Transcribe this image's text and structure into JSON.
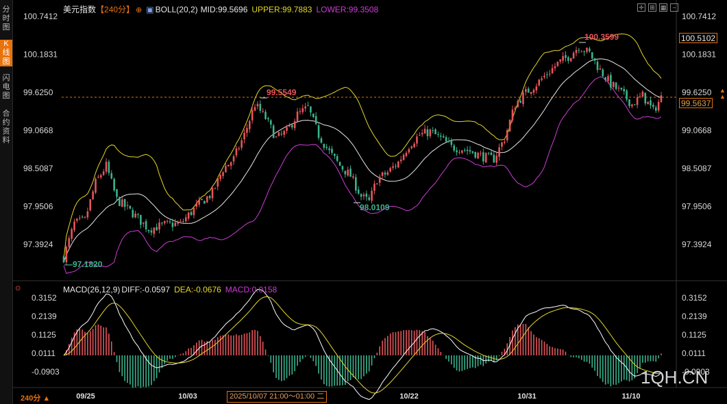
{
  "sidebar": {
    "items": [
      {
        "chars": [
          "分",
          "时",
          "图"
        ],
        "active": false
      },
      {
        "chars": [
          "K",
          "线",
          "图"
        ],
        "active": true
      },
      {
        "chars": [
          "闪",
          "电",
          "图"
        ],
        "active": false
      },
      {
        "chars": [
          "合",
          "约",
          "资",
          "料"
        ],
        "active": false
      }
    ]
  },
  "header": {
    "symbol": "美元指数",
    "period": "【240分】",
    "settings_icon": "gear-icon",
    "indicator_icon": "chart-icon",
    "boll_name": "BOLL(20,2)",
    "mid": "MID:99.5696",
    "upper": "UPPER:99.7883",
    "lower": "LOWER:99.3508"
  },
  "toolbar": {
    "buttons": [
      "crosshair-icon",
      "fit-icon",
      "image-icon",
      "minus-icon"
    ]
  },
  "macd_header": {
    "name": "MACD(26,12,9)",
    "diff": "DIFF:-0.0597",
    "dea": "DEA:-0.0676",
    "macd": "MACD:0.0158"
  },
  "colors": {
    "up": "#e8555c",
    "down": "#3bb48e",
    "upper_band": "#e6d82a",
    "mid_band": "#e8e8e8",
    "lower_band": "#d03cd8",
    "diff_line": "#ffffff",
    "dea_line": "#e6d82a",
    "accent": "#e8720c",
    "high_label": "#e8555c",
    "low_label": "#3bb48e"
  },
  "price_axis": {
    "ticks": [
      "100.7412",
      "100.1831",
      "99.6250",
      "99.0668",
      "98.5087",
      "97.9506",
      "97.3924"
    ],
    "current_price": "99.5637",
    "ref_price": "100.5102",
    "dashed_level": 99.5549
  },
  "macd_axis": {
    "ticks": [
      "0.3152",
      "0.2139",
      "0.1125",
      "0.0111",
      "-0.0903"
    ]
  },
  "dates": [
    "09/25",
    "10/03",
    "10/07",
    "10/22",
    "10/31",
    "11/10"
  ],
  "period_button": "240分",
  "cursor_time": "2025/10/07 21:00～01:00 二",
  "annotations": {
    "high1": "99.5549",
    "low1": "98.0109",
    "high2": "100.3599",
    "start_low": "97.1820"
  },
  "watermark": "1QH.CN",
  "chart_data": {
    "type": "candlestick",
    "ylim": [
      97.1,
      100.8
    ],
    "macd_ylim": [
      -0.13,
      0.33
    ],
    "anchors_close": [
      [
        0,
        97.2
      ],
      [
        4,
        97.7
      ],
      [
        8,
        97.75
      ],
      [
        12,
        98.3
      ],
      [
        16,
        98.55
      ],
      [
        20,
        98.05
      ],
      [
        26,
        97.85
      ],
      [
        32,
        97.62
      ],
      [
        38,
        97.68
      ],
      [
        44,
        97.7
      ],
      [
        50,
        97.95
      ],
      [
        56,
        98.15
      ],
      [
        60,
        98.5
      ],
      [
        64,
        98.65
      ],
      [
        68,
        99.0
      ],
      [
        72,
        99.45
      ],
      [
        76,
        99.25
      ],
      [
        80,
        98.95
      ],
      [
        84,
        99.05
      ],
      [
        88,
        99.3
      ],
      [
        92,
        99.4
      ],
      [
        96,
        99.0
      ],
      [
        100,
        98.75
      ],
      [
        104,
        98.55
      ],
      [
        108,
        98.4
      ],
      [
        112,
        98.1
      ],
      [
        115,
        98.02
      ],
      [
        118,
        98.35
      ],
      [
        122,
        98.45
      ],
      [
        126,
        98.6
      ],
      [
        130,
        98.85
      ],
      [
        134,
        99.0
      ],
      [
        138,
        99.05
      ],
      [
        142,
        98.95
      ],
      [
        146,
        98.82
      ],
      [
        150,
        98.8
      ],
      [
        154,
        98.75
      ],
      [
        158,
        98.68
      ],
      [
        162,
        98.65
      ],
      [
        166,
        98.95
      ],
      [
        170,
        99.45
      ],
      [
        174,
        99.62
      ],
      [
        178,
        99.75
      ],
      [
        182,
        99.9
      ],
      [
        186,
        100.05
      ],
      [
        190,
        100.15
      ],
      [
        194,
        100.3
      ],
      [
        198,
        100.2
      ],
      [
        202,
        99.95
      ],
      [
        206,
        99.75
      ],
      [
        210,
        99.62
      ],
      [
        214,
        99.45
      ],
      [
        218,
        99.58
      ],
      [
        222,
        99.35
      ],
      [
        225,
        99.55
      ]
    ]
  }
}
